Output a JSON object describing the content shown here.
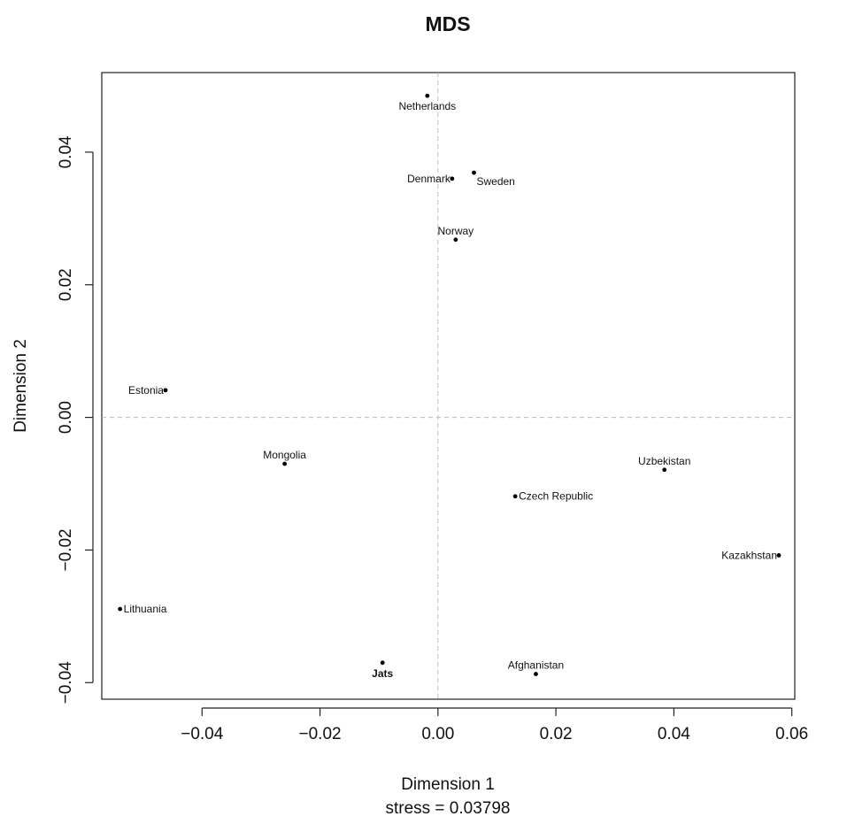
{
  "chart_data": {
    "type": "scatter",
    "title": "MDS",
    "xlabel": "Dimension 1",
    "ylabel": "Dimension 2",
    "subtitle": "stress = 0.03798",
    "xlim": [
      -0.057,
      0.0605
    ],
    "ylim": [
      -0.0425,
      0.052
    ],
    "xticks": [
      -0.04,
      -0.02,
      0.0,
      0.02,
      0.04,
      0.06
    ],
    "xtick_labels": [
      "−0.04",
      "−0.02",
      "0.00",
      "0.02",
      "0.04",
      "0.06"
    ],
    "yticks": [
      -0.04,
      -0.02,
      0.0,
      0.02,
      0.04
    ],
    "ytick_labels": [
      "−0.04",
      "−0.02",
      "0.00",
      "0.02",
      "0.04"
    ],
    "reference_lines": {
      "x": 0,
      "y": 0,
      "style": "dashed"
    },
    "points": [
      {
        "label": "Netherlands",
        "x": -0.0018,
        "y": 0.0485,
        "label_pos": "below"
      },
      {
        "label": "Denmark",
        "x": 0.0024,
        "y": 0.036,
        "label_pos": "left"
      },
      {
        "label": "Sweden",
        "x": 0.0061,
        "y": 0.0369,
        "label_pos": "right-below"
      },
      {
        "label": "Norway",
        "x": 0.003,
        "y": 0.0268,
        "label_pos": "above"
      },
      {
        "label": "Estonia",
        "x": -0.0462,
        "y": 0.0041,
        "label_pos": "left"
      },
      {
        "label": "Mongolia",
        "x": -0.026,
        "y": -0.007,
        "label_pos": "above"
      },
      {
        "label": "Uzbekistan",
        "x": 0.0384,
        "y": -0.0079,
        "label_pos": "above"
      },
      {
        "label": "Czech Republic",
        "x": 0.0131,
        "y": -0.0119,
        "label_pos": "right"
      },
      {
        "label": "Kazakhstan",
        "x": 0.0578,
        "y": -0.0208,
        "label_pos": "left"
      },
      {
        "label": "Lithuania",
        "x": -0.0539,
        "y": -0.0289,
        "label_pos": "right"
      },
      {
        "label": "Jats",
        "x": -0.0094,
        "y": -0.037,
        "label_pos": "below",
        "bold": true
      },
      {
        "label": "Afghanistan",
        "x": 0.0166,
        "y": -0.0387,
        "label_pos": "above"
      }
    ]
  }
}
